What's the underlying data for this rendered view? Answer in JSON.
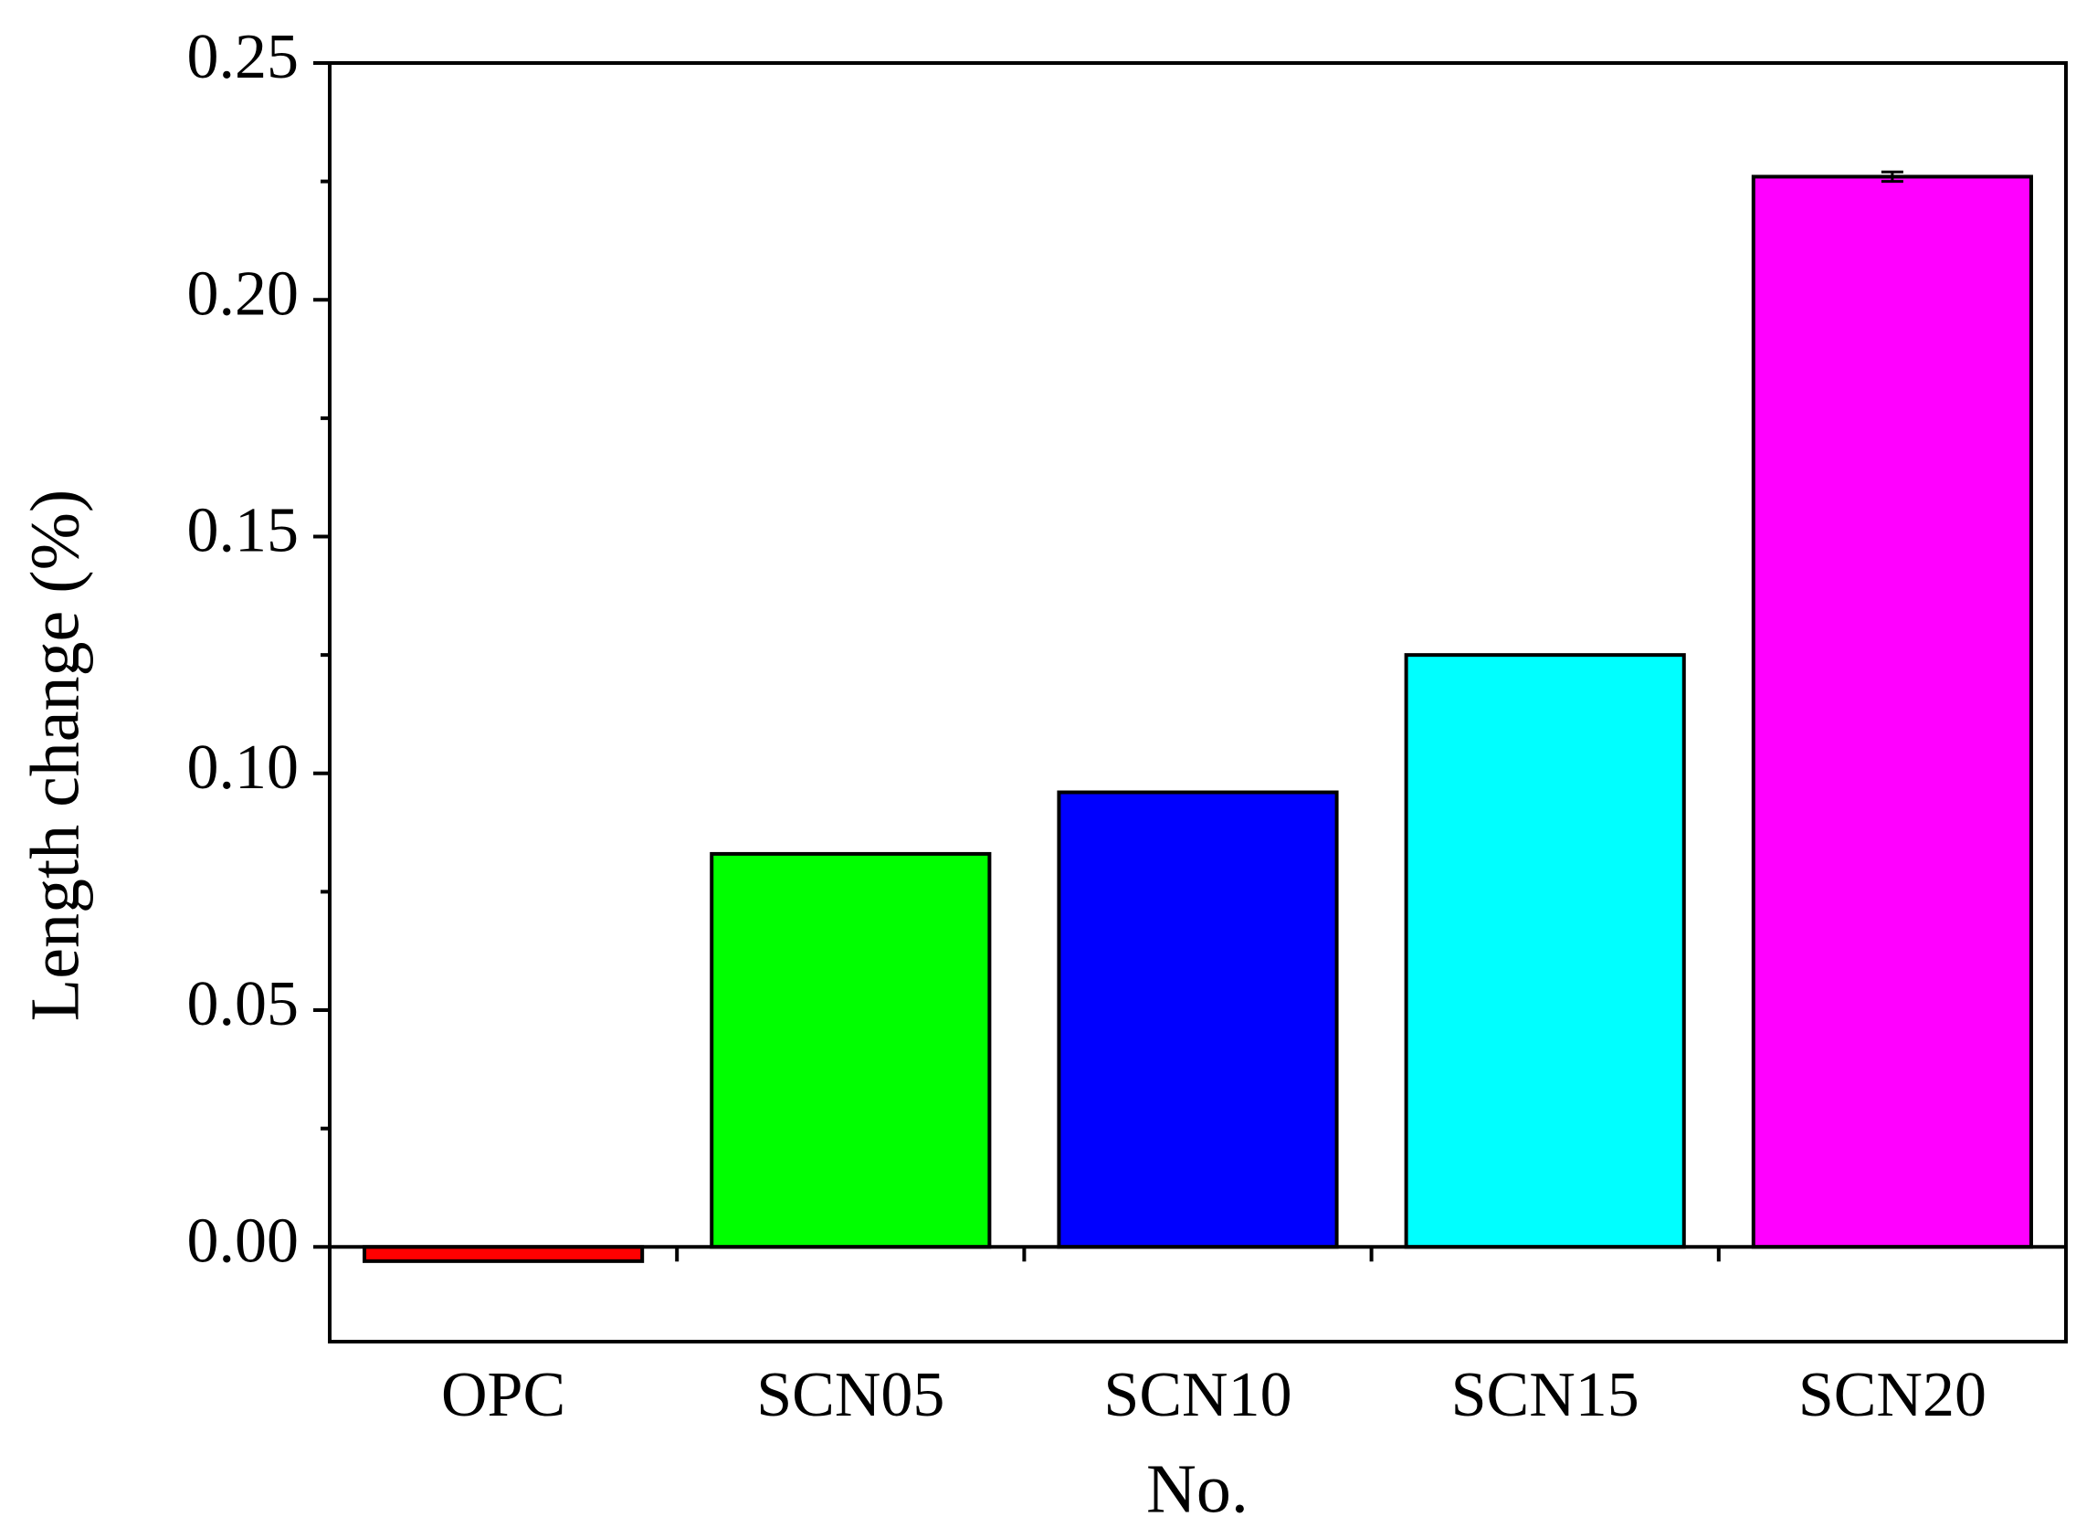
{
  "chart_data": {
    "type": "bar",
    "x_label": "No.",
    "y_label": "Length change (%)",
    "categories": [
      "OPC",
      "SCN05",
      "SCN10",
      "SCN15",
      "SCN20"
    ],
    "values": [
      -0.003,
      0.083,
      0.096,
      0.125,
      0.226
    ],
    "errors": [
      0,
      0,
      0,
      0,
      0.001
    ],
    "colors": [
      "#ff0000",
      "#00ff00",
      "#0000ff",
      "#00ffff",
      "#ff00ff"
    ],
    "ylim": [
      -0.02,
      0.25
    ],
    "yticks": [
      {
        "value": 0,
        "label": "0.00"
      },
      {
        "value": 0.05,
        "label": "0.05"
      },
      {
        "value": 0.1,
        "label": "0.10"
      },
      {
        "value": 0.15,
        "label": "0.15"
      },
      {
        "value": 0.2,
        "label": "0.20"
      },
      {
        "value": 0.25,
        "label": "0.25"
      }
    ],
    "yticks_minor": [
      0.025,
      0.075,
      0.125,
      0.175,
      0.225
    ]
  }
}
